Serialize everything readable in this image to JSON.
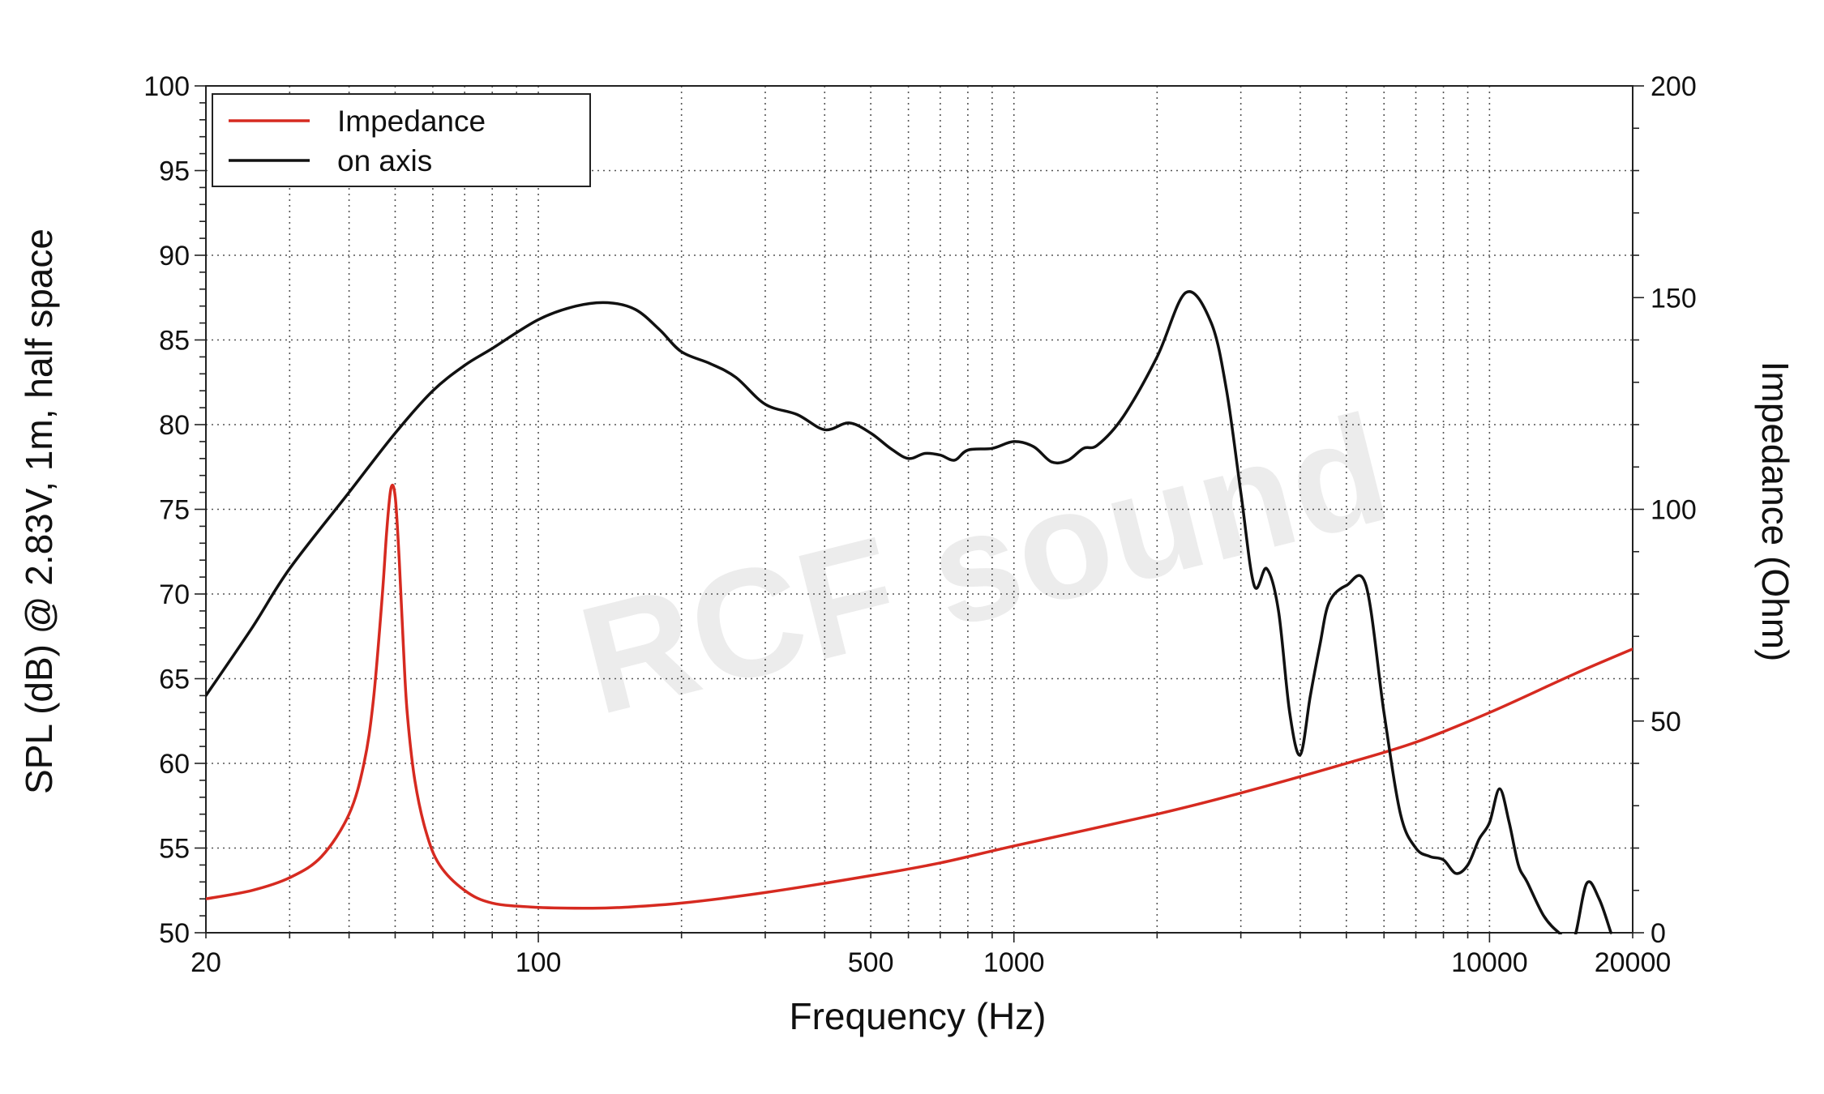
{
  "chart_data": {
    "type": "line",
    "xlabel": "Frequency (Hz)",
    "ylabel": "SPL (dB) @ 2.83V, 1m, half space",
    "y2label": "Impedance (Ohm)",
    "xscale": "log",
    "xlim": [
      20,
      20000
    ],
    "ylim": [
      50,
      100
    ],
    "y2lim": [
      0,
      200
    ],
    "grid": true,
    "legend_position": "top-left",
    "watermark": "RCF sound",
    "x_ticks": [
      {
        "value": 20,
        "label": "20"
      },
      {
        "value": 100,
        "label": "100"
      },
      {
        "value": 500,
        "label": "500"
      },
      {
        "value": 1000,
        "label": "1000"
      },
      {
        "value": 10000,
        "label": "10000"
      },
      {
        "value": 20000,
        "label": "20000"
      }
    ],
    "y_ticks": [
      {
        "value": 50,
        "label": "50"
      },
      {
        "value": 55,
        "label": "55"
      },
      {
        "value": 60,
        "label": "60"
      },
      {
        "value": 65,
        "label": "65"
      },
      {
        "value": 70,
        "label": "70"
      },
      {
        "value": 75,
        "label": "75"
      },
      {
        "value": 80,
        "label": "80"
      },
      {
        "value": 85,
        "label": "85"
      },
      {
        "value": 90,
        "label": "90"
      },
      {
        "value": 95,
        "label": "95"
      },
      {
        "value": 100,
        "label": "100"
      }
    ],
    "y2_ticks": [
      {
        "value": 0,
        "label": "0"
      },
      {
        "value": 50,
        "label": "50"
      },
      {
        "value": 100,
        "label": "100"
      },
      {
        "value": 150,
        "label": "150"
      },
      {
        "value": 200,
        "label": "200"
      }
    ],
    "series": [
      {
        "name": "Impedance",
        "color": "#d62a20",
        "axis": "right",
        "x": [
          20,
          25,
          30,
          35,
          40,
          43,
          45,
          47,
          48,
          49,
          50,
          51,
          52,
          53,
          55,
          58,
          62,
          70,
          80,
          100,
          130,
          150,
          200,
          300,
          500,
          700,
          1000,
          2000,
          3000,
          5000,
          7000,
          10000,
          15000,
          20000
        ],
        "y": [
          8,
          10,
          13,
          18,
          28,
          40,
          55,
          80,
          95,
          105,
          103,
          88,
          68,
          52,
          36,
          24,
          16,
          10,
          7,
          6,
          5.8,
          6,
          7,
          9.5,
          13.5,
          16.5,
          20.5,
          28,
          33,
          40,
          45,
          52,
          61,
          67
        ]
      },
      {
        "name": "on axis",
        "color": "#111111",
        "axis": "left",
        "x": [
          20,
          25,
          30,
          40,
          50,
          60,
          70,
          80,
          100,
          120,
          140,
          160,
          180,
          200,
          230,
          260,
          300,
          350,
          400,
          450,
          500,
          550,
          600,
          650,
          700,
          750,
          800,
          900,
          1000,
          1100,
          1200,
          1300,
          1400,
          1500,
          1700,
          2000,
          2300,
          2600,
          2800,
          3000,
          3200,
          3400,
          3600,
          3800,
          4000,
          4200,
          4400,
          4600,
          5000,
          5500,
          6000,
          6500,
          7000,
          7500,
          8000,
          8500,
          9000,
          9500,
          10000,
          10500,
          11000,
          11500,
          12000,
          13000,
          14000,
          15000,
          16000,
          17000,
          18000
        ],
        "y": [
          64,
          68,
          71.5,
          76,
          79.5,
          82,
          83.5,
          84.5,
          86.2,
          87,
          87.2,
          86.8,
          85.6,
          84.3,
          83.6,
          82.8,
          81.2,
          80.6,
          79.7,
          80.1,
          79.5,
          78.6,
          78,
          78.3,
          78.2,
          77.9,
          78.5,
          78.6,
          79,
          78.7,
          77.8,
          77.9,
          78.6,
          78.8,
          80.5,
          84,
          87.8,
          86,
          82,
          76,
          70.5,
          71.5,
          69,
          63,
          60.5,
          64,
          67,
          69.5,
          70.5,
          70.5,
          63,
          57,
          55,
          54.5,
          54.3,
          53.5,
          54,
          55.5,
          56.5,
          58.5,
          56.5,
          54,
          53,
          51,
          50,
          49.5,
          52.9,
          52,
          50
        ]
      }
    ]
  }
}
